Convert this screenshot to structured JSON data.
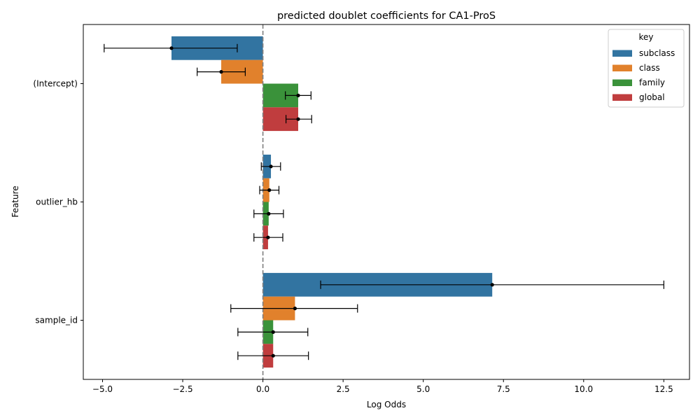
{
  "chart_data": {
    "type": "bar",
    "orientation": "horizontal",
    "title": "predicted doublet coefficients for CA1-ProS",
    "xlabel": "Log Odds",
    "ylabel": "Feature",
    "xlim": [
      -5.6,
      13.3
    ],
    "xticks": [
      -5.0,
      -2.5,
      0.0,
      2.5,
      5.0,
      7.5,
      10.0,
      12.5
    ],
    "xtick_labels": [
      "−5.0",
      "−2.5",
      "0.0",
      "2.5",
      "5.0",
      "7.5",
      "10.0",
      "12.5"
    ],
    "categories": [
      "(Intercept)",
      "outlier_hb",
      "sample_id"
    ],
    "reference_line": 0,
    "grid": false,
    "legend": {
      "title": "key",
      "position": "top-right"
    },
    "series": [
      {
        "name": "subclass",
        "color": "#3274a1",
        "values": [
          -2.85,
          0.25,
          7.15
        ],
        "ci_low": [
          -4.95,
          -0.05,
          1.8
        ],
        "ci_high": [
          -0.8,
          0.55,
          12.5
        ]
      },
      {
        "name": "class",
        "color": "#e1812c",
        "values": [
          -1.3,
          0.2,
          1.0
        ],
        "ci_low": [
          -2.05,
          -0.1,
          -1.0
        ],
        "ci_high": [
          -0.55,
          0.5,
          2.95
        ]
      },
      {
        "name": "family",
        "color": "#3a923a",
        "values": [
          1.1,
          0.18,
          0.32
        ],
        "ci_low": [
          0.7,
          -0.28,
          -0.78
        ],
        "ci_high": [
          1.5,
          0.64,
          1.4
        ]
      },
      {
        "name": "global",
        "color": "#c03d3e",
        "values": [
          1.1,
          0.16,
          0.32
        ],
        "ci_low": [
          0.72,
          -0.28,
          -0.78
        ],
        "ci_high": [
          1.52,
          0.62,
          1.42
        ]
      }
    ]
  }
}
